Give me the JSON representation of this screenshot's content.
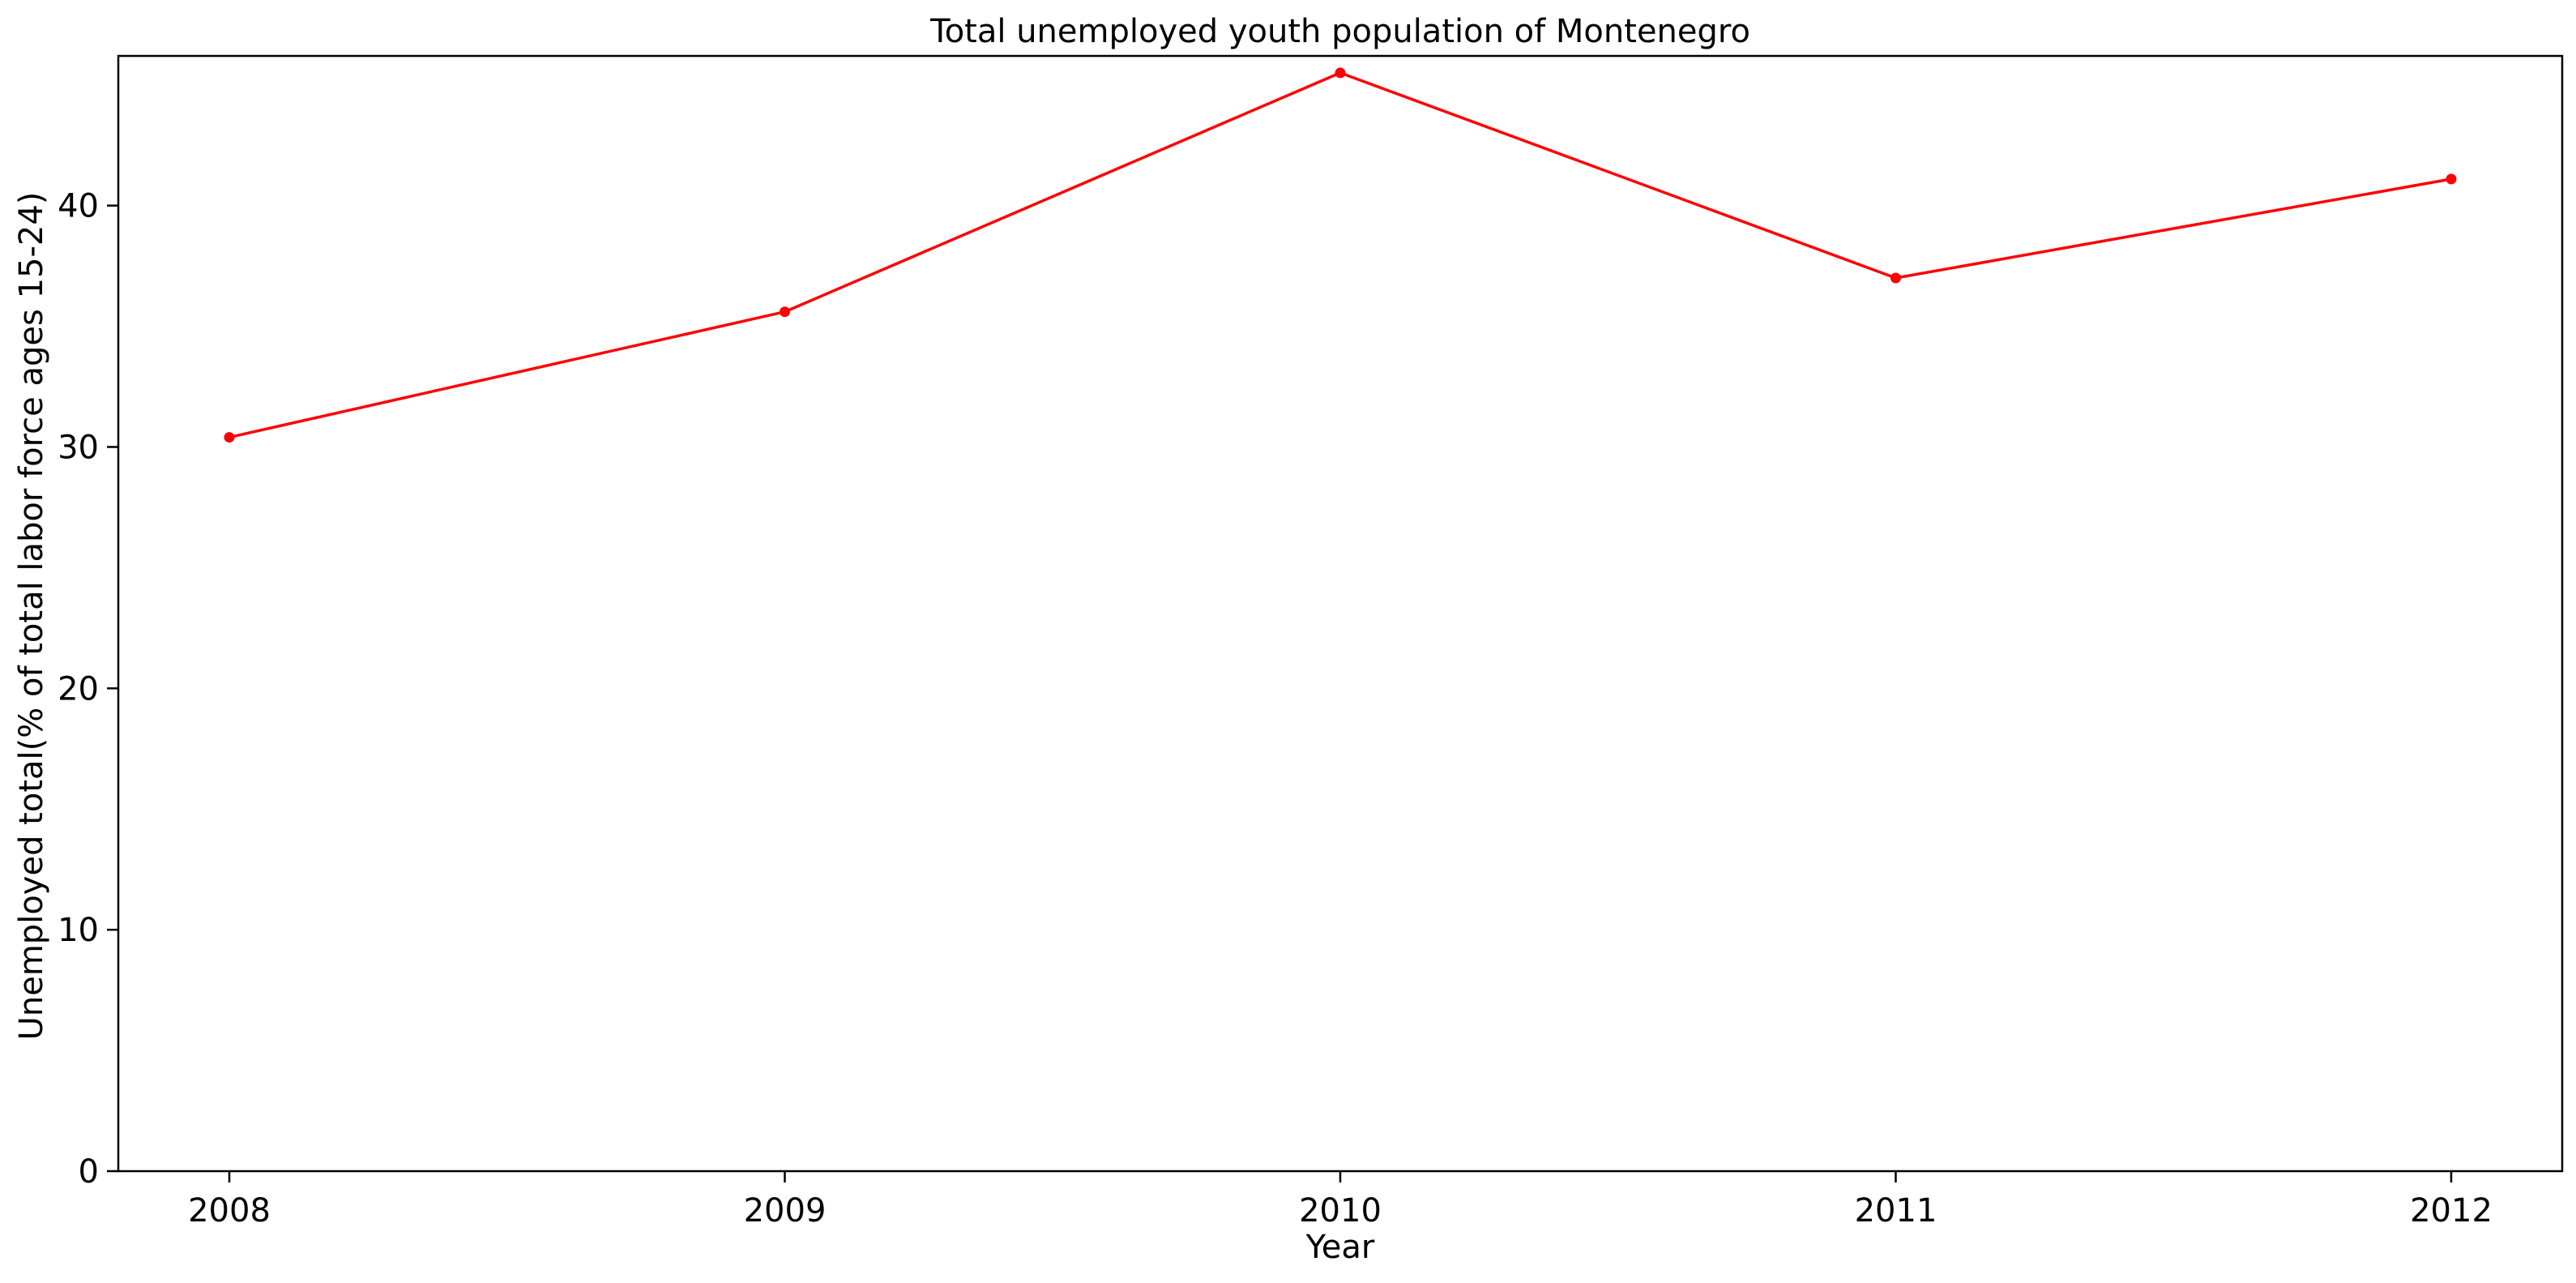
{
  "chart_data": {
    "type": "line",
    "title": "Total unemployed youth population of Montenegro",
    "xlabel": "Year",
    "ylabel": "Unemployed total(% of total labor force ages 15-24)",
    "x": [
      "2008",
      "2009",
      "2010",
      "2011",
      "2012"
    ],
    "series": [
      {
        "values": [
          30.4,
          35.6,
          45.5,
          37.0,
          41.1
        ],
        "color": "#ff0000",
        "marker": "circle"
      }
    ],
    "ylim": [
      0,
      46.2
    ],
    "yticks": [
      0,
      10,
      20,
      30,
      40
    ],
    "grid": false,
    "legend": "none"
  }
}
